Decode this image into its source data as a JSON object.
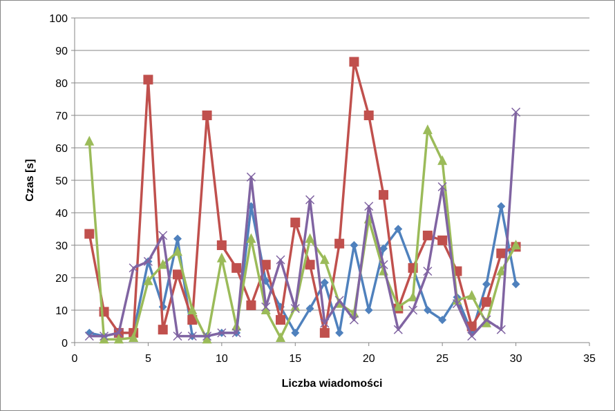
{
  "chart_data": {
    "type": "line",
    "title": "",
    "xlabel": "Liczba wiadomości",
    "ylabel": "Czas [s]",
    "xlim": [
      0,
      35
    ],
    "ylim": [
      0,
      100
    ],
    "x_ticks": [
      "0",
      "5",
      "10",
      "15",
      "20",
      "25",
      "30",
      "35"
    ],
    "y_ticks": [
      "0",
      "10",
      "20",
      "30",
      "40",
      "50",
      "60",
      "70",
      "80",
      "90",
      "100"
    ],
    "grid": "horizontal",
    "legend": "none",
    "x": [
      1,
      2,
      3,
      4,
      5,
      6,
      7,
      8,
      9,
      10,
      11,
      12,
      13,
      14,
      15,
      16,
      17,
      18,
      19,
      20,
      21,
      22,
      23,
      24,
      25,
      26,
      27,
      28,
      29,
      30
    ],
    "series": [
      {
        "color": "#4f81bd",
        "marker": "diamond",
        "values": [
          3,
          2,
          3,
          3,
          25,
          11,
          32,
          2,
          2,
          3,
          3,
          42,
          19,
          11,
          3,
          10.5,
          18.5,
          3,
          30,
          10,
          29,
          35,
          23,
          10,
          7,
          14,
          3,
          18,
          42,
          18
        ]
      },
      {
        "color": "#c0504d",
        "marker": "square",
        "values": [
          33.5,
          9.5,
          3,
          3,
          81,
          4,
          21,
          7,
          70,
          30,
          23,
          11.5,
          24,
          7,
          37,
          24,
          3,
          30.5,
          86.5,
          70,
          45.5,
          10.5,
          23,
          33,
          31.5,
          22,
          5,
          12.5,
          27.5,
          29.5
        ]
      },
      {
        "color": "#9bbb59",
        "marker": "triangle",
        "values": [
          62,
          1,
          1,
          1.5,
          19,
          24,
          28,
          10,
          1,
          26,
          5,
          32,
          10,
          1.5,
          11,
          32,
          25.5,
          12,
          9,
          38,
          22,
          11,
          14,
          65.5,
          56,
          13,
          14.5,
          6,
          22,
          30
        ]
      },
      {
        "color": "#8064a2",
        "marker": "x",
        "values": [
          2,
          2,
          3,
          23,
          25,
          33,
          2,
          2,
          2,
          3,
          3,
          51,
          11,
          25.5,
          10.5,
          44,
          6,
          13,
          7,
          42,
          24,
          4,
          10,
          22,
          48,
          12,
          2,
          7,
          4,
          71
        ]
      }
    ]
  }
}
